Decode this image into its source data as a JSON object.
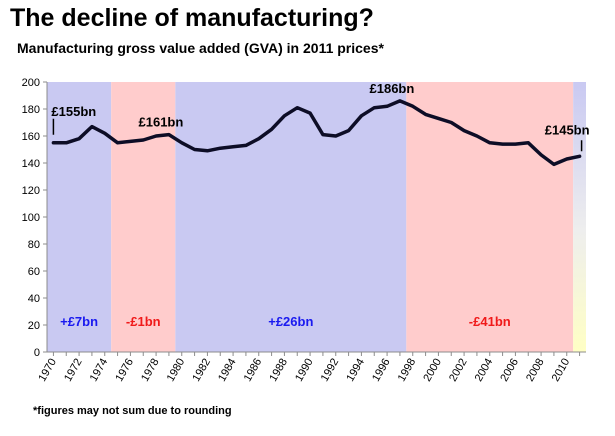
{
  "title": "The decline of manufacturing?",
  "subtitle": "Manufacturing gross value added (GVA) in 2011 prices*",
  "footnote": "*figures may not sum due to rounding",
  "chart_data": {
    "type": "line",
    "ylim": [
      0,
      200
    ],
    "y_ticks": [
      "0",
      "20",
      "40",
      "60",
      "80",
      "100",
      "120",
      "140",
      "160",
      "180",
      "200"
    ],
    "x_ticks": [
      "1970",
      "1972",
      "1974",
      "1976",
      "1978",
      "1980",
      "1982",
      "1984",
      "1986",
      "1988",
      "1990",
      "1992",
      "1994",
      "1996",
      "1998",
      "2000",
      "2002",
      "2004",
      "2006",
      "2008",
      "2010"
    ],
    "x": [
      1970,
      1971,
      1972,
      1973,
      1974,
      1975,
      1976,
      1977,
      1978,
      1979,
      1980,
      1981,
      1982,
      1983,
      1984,
      1985,
      1986,
      1987,
      1988,
      1989,
      1990,
      1991,
      1992,
      1993,
      1994,
      1995,
      1996,
      1997,
      1998,
      1999,
      2000,
      2001,
      2002,
      2003,
      2004,
      2005,
      2006,
      2007,
      2008,
      2009,
      2010,
      2011
    ],
    "series": [
      {
        "values": [
          155,
          155,
          158,
          167,
          162,
          155,
          156,
          157,
          160,
          161,
          155,
          150,
          149,
          151,
          152,
          153,
          158,
          165,
          175,
          181,
          177,
          161,
          160,
          164,
          175,
          181,
          182,
          186,
          182,
          176,
          173,
          170,
          164,
          160,
          155,
          154,
          154,
          155,
          146,
          139,
          143,
          145
        ]
      }
    ],
    "bands": [
      {
        "start": 1969.5,
        "end": 1974.5,
        "color": "#c9c9f2",
        "label": "+£7bn",
        "label_color": "#1a1af0"
      },
      {
        "start": 1974.5,
        "end": 1979.5,
        "color": "#ffcccc",
        "label": "-£1bn",
        "label_color": "#f01a1a"
      },
      {
        "start": 1979.5,
        "end": 1997.5,
        "color": "#c9c9f2",
        "label": "+£26bn",
        "label_color": "#1a1af0"
      },
      {
        "start": 1997.5,
        "end": 2010.5,
        "color": "#ffcccc",
        "label": "-£41bn",
        "label_color": "#f01a1a"
      },
      {
        "start": 2010.5,
        "end": 2011.5,
        "color": "gradient",
        "label": "",
        "label_color": "#000000"
      }
    ],
    "annotations": [
      {
        "year": 1970,
        "value": 155,
        "label": "£155bn",
        "leader": true
      },
      {
        "year": 1979,
        "value": 161,
        "label": "£161bn",
        "leader": false
      },
      {
        "year": 1997,
        "value": 186,
        "label": "£186bn",
        "leader": false
      },
      {
        "year": 2011,
        "value": 145,
        "label": "£145bn",
        "leader": true
      }
    ],
    "line_color": "#0d0d26",
    "grid": false
  }
}
